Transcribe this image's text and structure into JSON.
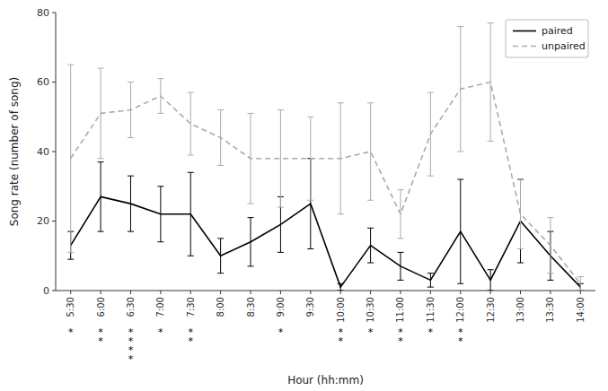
{
  "chart_data": {
    "type": "line",
    "categories": [
      "5:30",
      "6:00",
      "6:30",
      "7:00",
      "7:30",
      "8:00",
      "8:30",
      "9:00",
      "9:30",
      "10:00",
      "10:30",
      "11:00",
      "11:30",
      "12:00",
      "12:30",
      "13:00",
      "13:30",
      "14:00"
    ],
    "series": [
      {
        "name": "paired",
        "color": "#000000",
        "line_style": "solid",
        "values": [
          13,
          27,
          25,
          22,
          22,
          10,
          14,
          19,
          25,
          1,
          13,
          7,
          3,
          17,
          3,
          20,
          10,
          1
        ],
        "errors": [
          4,
          10,
          8,
          8,
          12,
          5,
          7,
          8,
          13,
          1,
          5,
          4,
          2,
          15,
          3,
          12,
          7,
          1
        ]
      },
      {
        "name": "unpaired",
        "color": "#aaaaaa",
        "line_style": "dashed",
        "values": [
          38,
          51,
          52,
          56,
          48,
          44,
          38,
          38,
          38,
          38,
          40,
          22,
          45,
          58,
          60,
          22,
          13,
          2
        ],
        "errors": [
          27,
          13,
          8,
          5,
          9,
          8,
          13,
          14,
          12,
          16,
          14,
          7,
          12,
          18,
          17,
          10,
          8,
          2
        ]
      }
    ],
    "annotations": [
      {
        "x": "5:30",
        "text": "*"
      },
      {
        "x": "6:00",
        "text": "*"
      },
      {
        "x": "6:00",
        "text": "*"
      },
      {
        "x": "6:30",
        "text": "*"
      },
      {
        "x": "6:30",
        "text": "*"
      },
      {
        "x": "6:30",
        "text": "*"
      },
      {
        "x": "6:30",
        "text": "*"
      },
      {
        "x": "7:00",
        "text": "*"
      },
      {
        "x": "7:30",
        "text": "*"
      },
      {
        "x": "7:30",
        "text": "*"
      },
      {
        "x": "9:00",
        "text": "*"
      },
      {
        "x": "10:00",
        "text": "*"
      },
      {
        "x": "10:00",
        "text": "*"
      },
      {
        "x": "10:30",
        "text": "*"
      },
      {
        "x": "11:00",
        "text": "*"
      },
      {
        "x": "11:00",
        "text": "*"
      },
      {
        "x": "11:30",
        "text": "*"
      },
      {
        "x": "12:00",
        "text": "*"
      },
      {
        "x": "12:00",
        "text": "*"
      }
    ],
    "xlabel": "Hour (hh:mm)",
    "ylabel": "Song rate (number of song)",
    "ylim": [
      0,
      80
    ],
    "yticks": [
      0,
      20,
      40,
      60,
      80
    ],
    "grid": false,
    "legend": "upper right"
  }
}
